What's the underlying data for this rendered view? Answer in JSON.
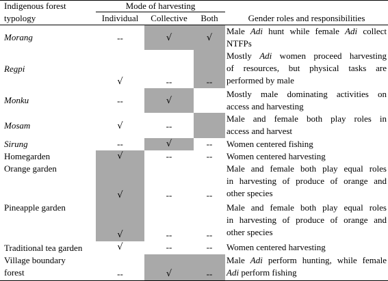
{
  "headers": {
    "typology_line1": "Indigenous forest",
    "typology_line2": "typology",
    "mode_group": "Mode of harvesting",
    "individual": "Individual",
    "collective": "Collective",
    "both": "Both",
    "gender": "Gender roles and responsibilities"
  },
  "rows": [
    {
      "name": "Morang",
      "name_italic": true,
      "individual": "--",
      "collective": "√",
      "both": "√",
      "desc": [
        [
          "Male ",
          {
            "i": "Adi"
          },
          " hunt while female ",
          {
            "i": "Adi"
          },
          " collect"
        ],
        [
          "NTFPs"
        ]
      ]
    },
    {
      "name": "Regpi",
      "name_italic": true,
      "individual": "√",
      "collective": "--",
      "both": "--",
      "desc": [
        [
          "Mostly ",
          {
            "i": "Adi"
          },
          " women proceed harvesting"
        ],
        [
          "of resources, but physical tasks are"
        ],
        [
          "performed by male"
        ]
      ]
    },
    {
      "name": "Monku",
      "name_italic": true,
      "individual": "--",
      "collective": "√",
      "both": "",
      "desc": [
        [
          "Mostly male dominating activities on"
        ],
        [
          "access and harvesting"
        ]
      ]
    },
    {
      "name": "Mosam",
      "name_italic": true,
      "individual": "√",
      "collective": "--",
      "both": "",
      "desc": [
        [
          "Male and female both play roles in"
        ],
        [
          "access and harvest"
        ]
      ]
    },
    {
      "name": "Sirung",
      "name_italic": true,
      "individual": "--",
      "collective": "√",
      "both": "--",
      "desc": [
        [
          "Women centered fishing"
        ]
      ]
    },
    {
      "name": "Homegarden",
      "name_italic": false,
      "individual": "√",
      "collective": "--",
      "both": "--",
      "desc": [
        [
          "Women centered harvesting"
        ]
      ]
    },
    {
      "name": "Orange garden",
      "name_italic": false,
      "individual": "√",
      "collective": "--",
      "both": "--",
      "desc": [
        [
          "Male and female both play equal roles"
        ],
        [
          "in harvesting of produce of orange and"
        ],
        [
          "other species"
        ]
      ]
    },
    {
      "name": "Pineapple garden",
      "name_italic": false,
      "individual": "√",
      "collective": "--",
      "both": "--",
      "desc": [
        [
          "Male and female both play equal roles"
        ],
        [
          "in harvesting of produce of orange and"
        ],
        [
          "other species"
        ]
      ]
    },
    {
      "name": "Traditional tea garden",
      "name_italic": false,
      "individual": "√",
      "collective": "--",
      "both": "--",
      "desc": [
        [
          "Women centered harvesting"
        ]
      ]
    },
    {
      "name_lines": [
        "Village boundary",
        "forest"
      ],
      "name_italic": false,
      "individual": "--",
      "collective": "√",
      "both": "--",
      "desc": [
        [
          "Male ",
          {
            "i": "Adi"
          },
          " perform hunting, while female"
        ],
        [
          {
            "i": "Adi"
          },
          " perform fishing"
        ]
      ]
    }
  ],
  "colors": {
    "shade": "#a9a9a9",
    "rule": "#000000"
  }
}
